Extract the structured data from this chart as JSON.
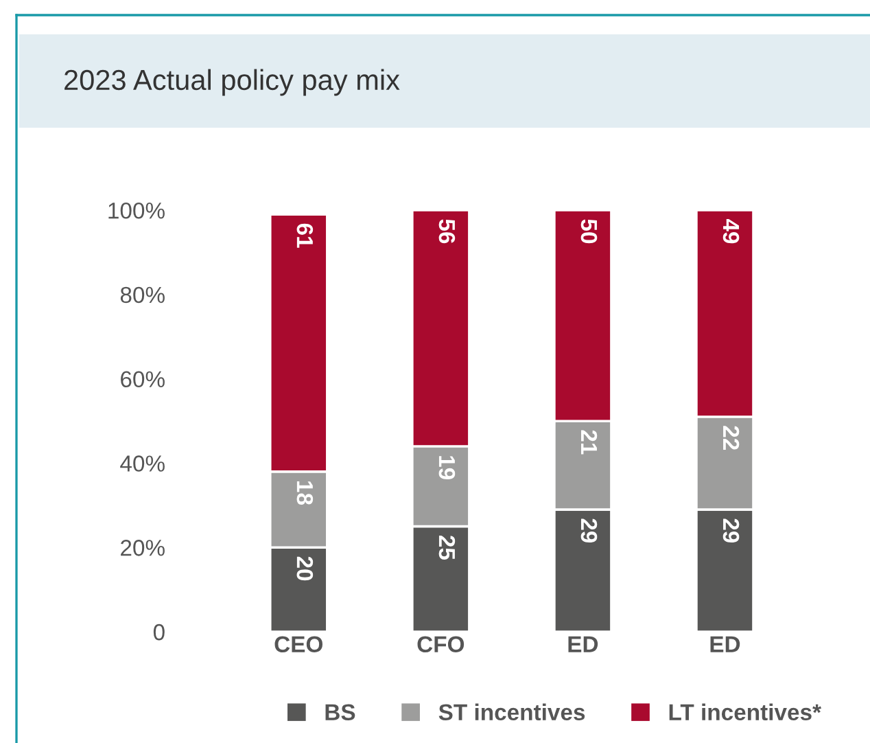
{
  "chart_data": {
    "type": "bar",
    "title": "2023 Actual policy pay mix",
    "stacked": true,
    "categories": [
      "CEO",
      "CFO",
      "ED",
      "ED"
    ],
    "series": [
      {
        "name": "BS",
        "color": "#575756",
        "values": [
          20,
          25,
          29,
          29
        ]
      },
      {
        "name": "ST incentives",
        "color": "#9d9d9c",
        "values": [
          18,
          19,
          21,
          22
        ]
      },
      {
        "name": "LT incentives*",
        "color": "#a90a2e",
        "values": [
          61,
          56,
          50,
          49
        ]
      }
    ],
    "data_labels": true,
    "ylim": [
      0,
      101
    ],
    "yticks": [
      {
        "value": 0,
        "label": "0"
      },
      {
        "value": 20,
        "label": "20%"
      },
      {
        "value": 40,
        "label": "40%"
      },
      {
        "value": 60,
        "label": "60%"
      },
      {
        "value": 80,
        "label": "80%"
      },
      {
        "value": 100,
        "label": "100%"
      }
    ],
    "grid": false,
    "legend": "bottom"
  }
}
